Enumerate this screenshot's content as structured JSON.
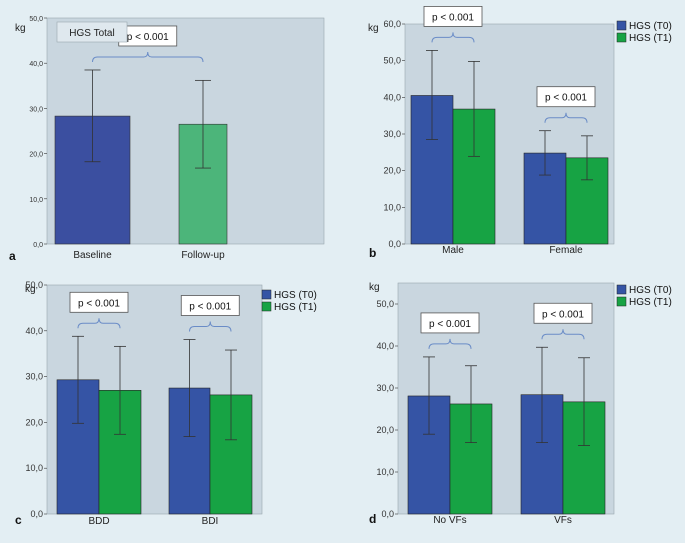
{
  "figure": {
    "background": "#e3eef3",
    "plot_background": "#c9d6df"
  },
  "chart_data": [
    {
      "panel_letter": "a",
      "type": "bar",
      "ylabel": "kg",
      "ylim": [
        0,
        50
      ],
      "yticks": [
        "0,0",
        "10,0",
        "20,0",
        "30,0",
        "40,0",
        "50,0"
      ],
      "categories": [
        "Baseline",
        "Follow-up"
      ],
      "box_label": "HGS Total",
      "legend": [],
      "series": [
        {
          "name": "HGS Total",
          "colors": [
            "#3b4fa0",
            "#4cb57a"
          ],
          "values": [
            28.3,
            26.5
          ],
          "errors": [
            [
              18.2,
              38.5
            ],
            [
              16.8,
              36.2
            ]
          ]
        }
      ],
      "annotations": [
        {
          "label": "p < 0.001",
          "groups": [
            0,
            1
          ]
        }
      ]
    },
    {
      "panel_letter": "b",
      "type": "bar",
      "ylabel": "kg",
      "ylim": [
        0,
        60
      ],
      "yticks": [
        "0,0",
        "10,0",
        "20,0",
        "30,0",
        "40,0",
        "50,0",
        "60,0"
      ],
      "categories": [
        "Male",
        "Female"
      ],
      "legend": [
        {
          "label": "HGS (T0)",
          "color": "#3554a5"
        },
        {
          "label": "HGS (T1)",
          "color": "#17a344"
        }
      ],
      "series": [
        {
          "name": "HGS (T0)",
          "color": "#3554a5",
          "values": [
            40.5,
            24.8
          ],
          "errors": [
            [
              28.5,
              52.8
            ],
            [
              18.8,
              30.9
            ]
          ]
        },
        {
          "name": "HGS (T1)",
          "color": "#17a344",
          "values": [
            36.8,
            23.5
          ],
          "errors": [
            [
              23.9,
              49.8
            ],
            [
              17.5,
              29.5
            ]
          ]
        }
      ],
      "annotations": [
        {
          "label": "p < 0.001",
          "group": 0
        },
        {
          "label": "p < 0.001",
          "group": 1
        }
      ]
    },
    {
      "panel_letter": "c",
      "type": "bar",
      "ylabel": "kg",
      "ylim": [
        0,
        50
      ],
      "yticks": [
        "0,0",
        "10,0",
        "20,0",
        "30,0",
        "40,0",
        "50,0"
      ],
      "categories": [
        "BDD",
        "BDI"
      ],
      "legend": [
        {
          "label": "HGS (T0)",
          "color": "#3554a5"
        },
        {
          "label": "HGS (T1)",
          "color": "#17a344"
        }
      ],
      "series": [
        {
          "name": "HGS (T0)",
          "color": "#3554a5",
          "values": [
            29.3,
            27.5
          ],
          "errors": [
            [
              19.8,
              38.8
            ],
            [
              16.9,
              38.1
            ]
          ]
        },
        {
          "name": "HGS (T1)",
          "color": "#17a344",
          "values": [
            27.0,
            26.0
          ],
          "errors": [
            [
              17.4,
              36.6
            ],
            [
              16.2,
              35.8
            ]
          ]
        }
      ],
      "annotations": [
        {
          "label": "p < 0.001",
          "group": 0
        },
        {
          "label": "p < 0.001",
          "group": 1
        }
      ]
    },
    {
      "panel_letter": "d",
      "type": "bar",
      "ylabel": "kg",
      "ylim": [
        0,
        55
      ],
      "yticks": [
        "0,0",
        "10,0",
        "20,0",
        "30,0",
        "40,0",
        "50,0"
      ],
      "categories": [
        "No VFs",
        "VFs"
      ],
      "legend": [
        {
          "label": "HGS (T0)",
          "color": "#3554a5"
        },
        {
          "label": "HGS (T1)",
          "color": "#17a344"
        }
      ],
      "series": [
        {
          "name": "HGS (T0)",
          "color": "#3554a5",
          "values": [
            28.1,
            28.4
          ],
          "errors": [
            [
              19.0,
              37.4
            ],
            [
              17.0,
              39.7
            ]
          ]
        },
        {
          "name": "HGS (T1)",
          "color": "#17a344",
          "values": [
            26.2,
            26.7
          ],
          "errors": [
            [
              17.0,
              35.3
            ],
            [
              16.3,
              37.2
            ]
          ]
        }
      ],
      "annotations": [
        {
          "label": "p < 0.001",
          "group": 0
        },
        {
          "label": "p < 0.001",
          "group": 1
        }
      ]
    }
  ]
}
